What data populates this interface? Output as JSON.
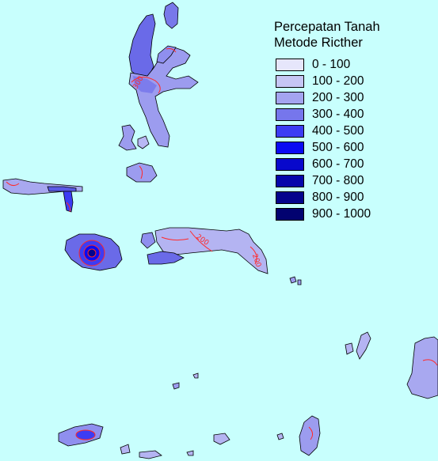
{
  "map": {
    "background_color": "#c8fffd",
    "legend": {
      "title_line1": "Percepatan Tanah",
      "title_line2": "Metode Ricther",
      "classes": [
        {
          "label": "0 - 100",
          "color": "#e6e6fb"
        },
        {
          "label": "100 - 200",
          "color": "#c6c6f5"
        },
        {
          "label": "200 - 300",
          "color": "#a4a4f0"
        },
        {
          "label": "300 - 400",
          "color": "#7676ec"
        },
        {
          "label": "400 - 500",
          "color": "#3c3cf4"
        },
        {
          "label": "500 - 600",
          "color": "#0a0af2"
        },
        {
          "label": "600 - 700",
          "color": "#0808cc"
        },
        {
          "label": "700 - 800",
          "color": "#0606aa"
        },
        {
          "label": "800 - 900",
          "color": "#04048c"
        },
        {
          "label": "900 - 1000",
          "color": "#020270"
        }
      ]
    },
    "contour_color": "#ff2a2a",
    "contour_labels": [
      "300",
      "200",
      "200"
    ]
  }
}
